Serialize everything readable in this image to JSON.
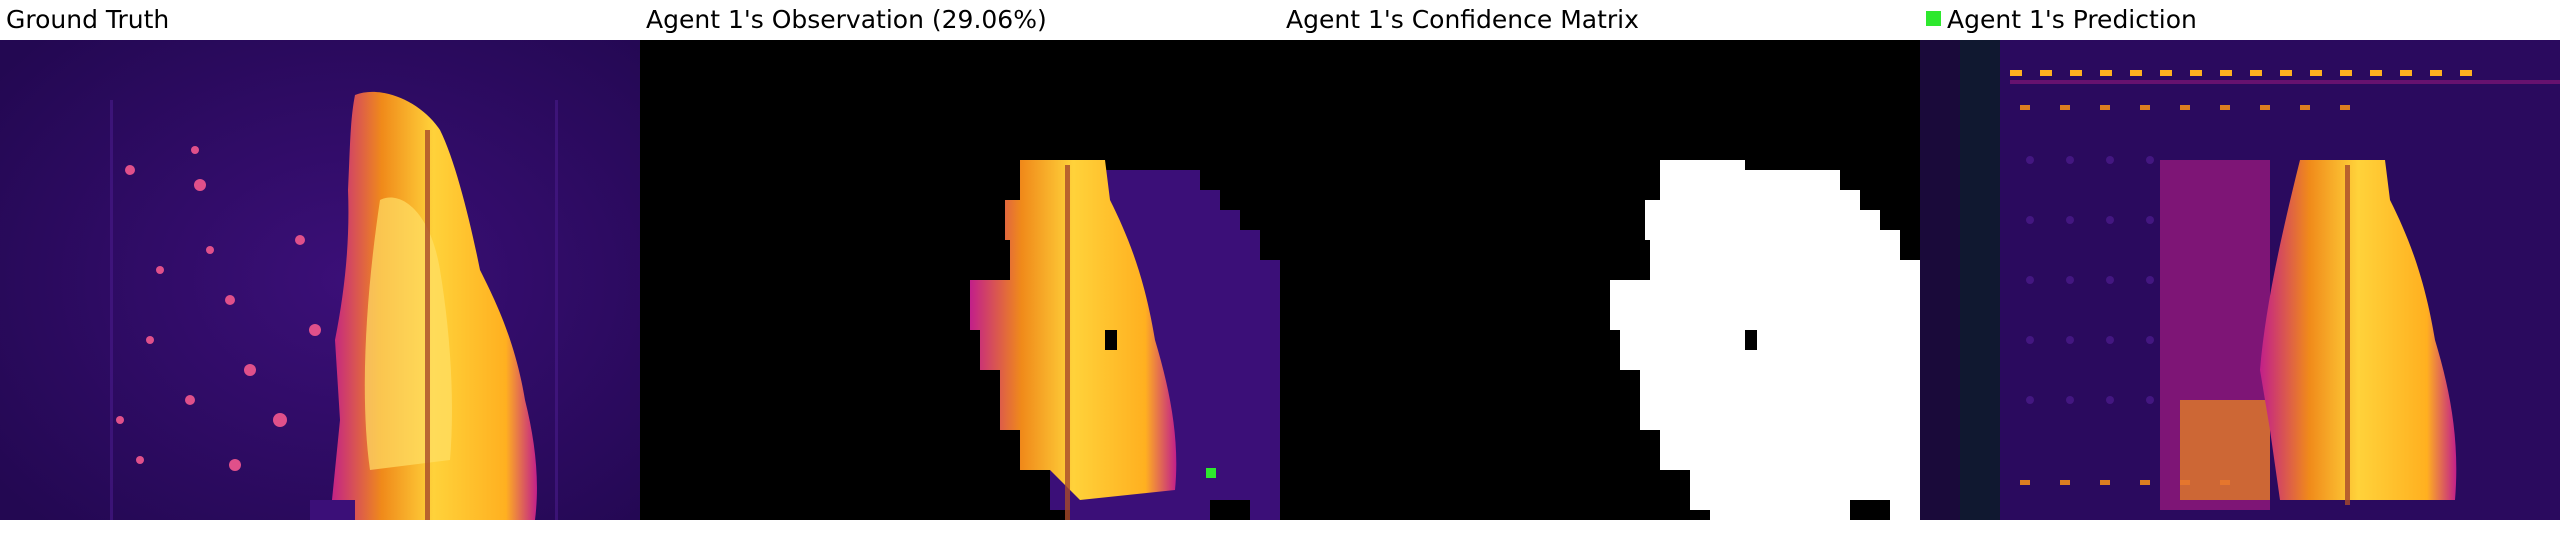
{
  "panels": [
    {
      "title": "Ground Truth"
    },
    {
      "title": "Agent 1's Observation (29.06%)"
    },
    {
      "title": "Agent 1's Confidence Matrix"
    },
    {
      "title": "Agent 1's Prediction",
      "legend_color": "#2ee82e"
    }
  ],
  "colors": {
    "heat_low": "#2a0a5e",
    "heat_mid": "#c21f8a",
    "heat_high": "#ffd23a",
    "mask_white": "#ffffff",
    "agent_marker": "#2ee82e"
  }
}
